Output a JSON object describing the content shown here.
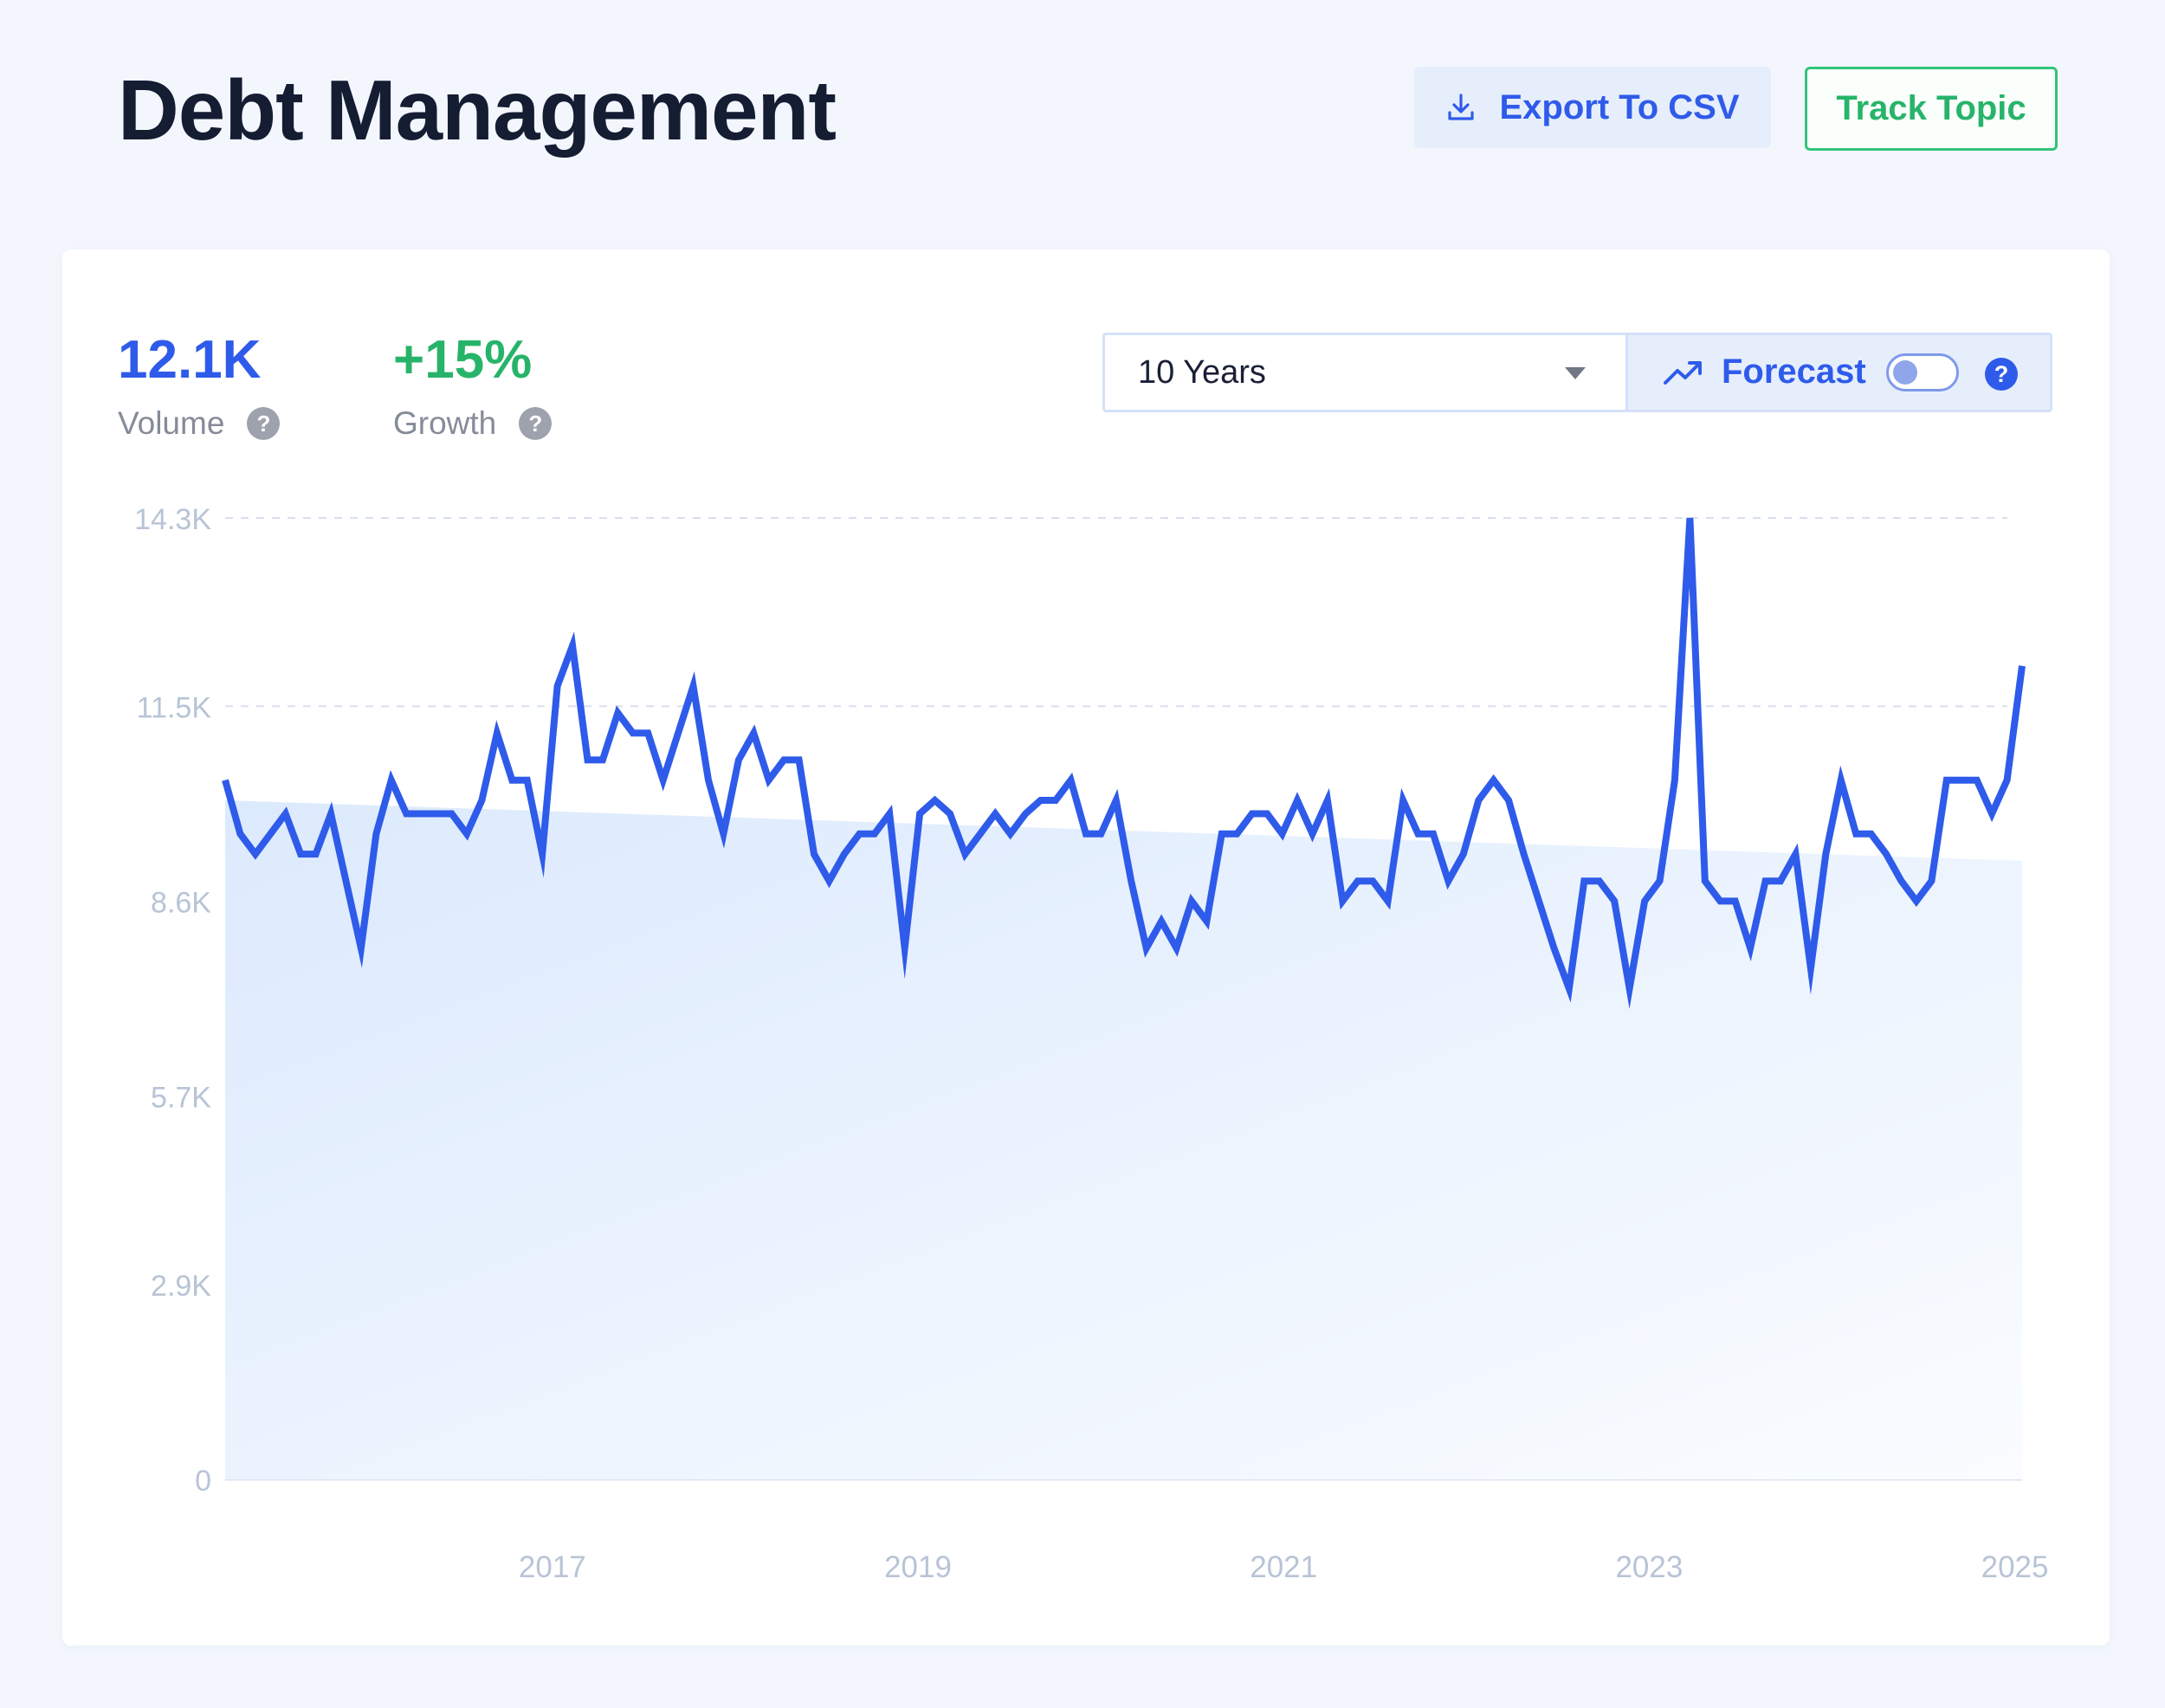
{
  "header": {
    "title": "Debt Management",
    "export_label": "Export To CSV",
    "track_label": "Track Topic"
  },
  "metrics": {
    "volume": {
      "value": "12.1K",
      "label": "Volume",
      "color": "#2f5bea"
    },
    "growth": {
      "value": "+15%",
      "label": "Growth",
      "color": "#27b46a"
    }
  },
  "controls": {
    "range_selected": "10 Years",
    "forecast_label": "Forecast",
    "forecast_enabled": false
  },
  "icons": {
    "export": "download-icon",
    "forecast": "trend-up-icon",
    "help": "question-circle-icon",
    "dropdown": "caret-down-icon"
  },
  "colors": {
    "accent": "#2f5bea",
    "line": "#2f5bea",
    "growth": "#27b46a",
    "grid": "#d6e0ee",
    "axis_text": "#b8c4d6"
  },
  "chart_data": {
    "type": "line",
    "title": "",
    "xlabel": "",
    "ylabel": "",
    "ylim": [
      0,
      14300
    ],
    "xlim": [
      2015.21,
      2025.04
    ],
    "yticks": [
      {
        "value": 14300,
        "label": "14.3K"
      },
      {
        "value": 11500,
        "label": "11.5K"
      },
      {
        "value": 8600,
        "label": "8.6K"
      },
      {
        "value": 5700,
        "label": "5.7K"
      },
      {
        "value": 2900,
        "label": "2.9K"
      },
      {
        "value": 0,
        "label": "0"
      }
    ],
    "xticks": [
      {
        "value": 2017,
        "label": "2017"
      },
      {
        "value": 2019,
        "label": "2019"
      },
      {
        "value": 2021,
        "label": "2021"
      },
      {
        "value": 2023,
        "label": "2023"
      },
      {
        "value": 2025,
        "label": "2025"
      }
    ],
    "grid": true,
    "trend": {
      "start": 10100,
      "end": 9200
    },
    "series": [
      {
        "values": [
          10400,
          9600,
          9300,
          9600,
          9900,
          9300,
          9300,
          9900,
          8900,
          7900,
          9600,
          10400,
          9900,
          9900,
          9900,
          9900,
          9600,
          10100,
          11100,
          10400,
          10400,
          9300,
          11800,
          12400,
          10700,
          10700,
          11400,
          11100,
          11100,
          10400,
          11100,
          11800,
          10400,
          9600,
          10700,
          11100,
          10400,
          10700,
          10700,
          9300,
          8900,
          9300,
          9600,
          9600,
          9900,
          7900,
          9900,
          10100,
          9900,
          9300,
          9600,
          9900,
          9600,
          9900,
          10100,
          10100,
          10400,
          9600,
          9600,
          10100,
          8900,
          7900,
          8300,
          7900,
          8600,
          8300,
          9600,
          9600,
          9900,
          9900,
          9600,
          10100,
          9600,
          10100,
          8600,
          8900,
          8900,
          8600,
          10100,
          9600,
          9600,
          8900,
          9300,
          10100,
          10400,
          10100,
          9300,
          8600,
          7900,
          7300,
          8900,
          8900,
          8600,
          7300,
          8600,
          8900,
          10400,
          14300,
          8900,
          8600,
          8600,
          7900,
          8900,
          8900,
          9300,
          7600,
          9300,
          10400,
          9600,
          9600,
          9300,
          8900,
          8600,
          8900,
          10400,
          10400,
          10400,
          9900,
          10400,
          12100
        ]
      }
    ]
  }
}
